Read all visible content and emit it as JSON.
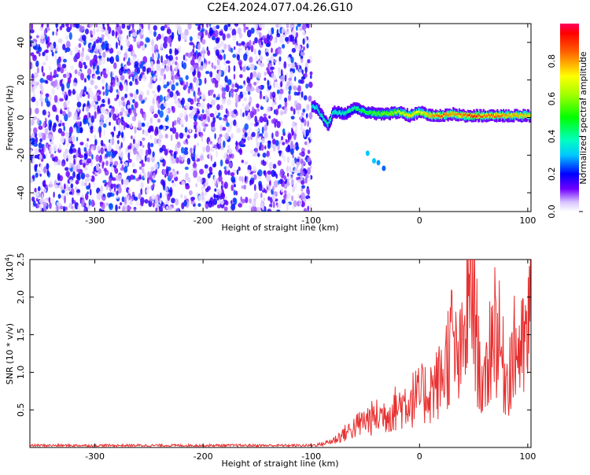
{
  "title": "C2E4.2024.077.04.26.G10",
  "chart_data": [
    {
      "type": "heatmap",
      "xlabel": "Height of straight line (km)",
      "ylabel": "Frequency (Hz)",
      "xlim": [
        -360,
        103
      ],
      "ylim": [
        -50,
        50
      ],
      "xticks": [
        -300,
        -200,
        -100,
        0,
        100
      ],
      "yticks": [
        -40,
        -20,
        0,
        20,
        40
      ],
      "colorbar": {
        "label": "Normalized spectral amplitude",
        "range": [
          0,
          1
        ],
        "ticks": [
          "0.0",
          "0.2",
          "0.4",
          "0.6",
          "0.8"
        ],
        "tick_values": [
          0,
          0.2,
          0.4,
          0.6,
          0.8
        ]
      },
      "noise_region": {
        "x_from": -360,
        "x_to": -100,
        "amplitude_range": [
          0.02,
          0.25
        ]
      },
      "signal_ridge": [
        {
          "x": -100,
          "freq": 6,
          "amp": 0.35
        },
        {
          "x": -95,
          "freq": 5,
          "amp": 0.4
        },
        {
          "x": -90,
          "freq": 0,
          "amp": 0.4
        },
        {
          "x": -85,
          "freq": -4,
          "amp": 0.45
        },
        {
          "x": -80,
          "freq": 3,
          "amp": 0.4
        },
        {
          "x": -70,
          "freq": 2,
          "amp": 0.4
        },
        {
          "x": -60,
          "freq": 5,
          "amp": 0.45
        },
        {
          "x": -50,
          "freq": 3,
          "amp": 0.5
        },
        {
          "x": -40,
          "freq": 2,
          "amp": 0.55
        },
        {
          "x": -30,
          "freq": 2,
          "amp": 0.6
        },
        {
          "x": -20,
          "freq": 3,
          "amp": 0.65
        },
        {
          "x": -10,
          "freq": 1,
          "amp": 0.75
        },
        {
          "x": 0,
          "freq": 3,
          "amp": 0.7
        },
        {
          "x": 10,
          "freq": 1,
          "amp": 0.8
        },
        {
          "x": 20,
          "freq": 1,
          "amp": 0.9
        },
        {
          "x": 30,
          "freq": 2,
          "amp": 0.8
        },
        {
          "x": 40,
          "freq": 1,
          "amp": 0.85
        },
        {
          "x": 50,
          "freq": 1,
          "amp": 0.95
        },
        {
          "x": 60,
          "freq": 1,
          "amp": 0.85
        },
        {
          "x": 70,
          "freq": 1,
          "amp": 0.9
        },
        {
          "x": 80,
          "freq": 1,
          "amp": 0.8
        },
        {
          "x": 90,
          "freq": 1,
          "amp": 0.8
        },
        {
          "x": 103,
          "freq": 1,
          "amp": 0.75
        }
      ],
      "side_blobs": [
        {
          "x": -48,
          "freq": -19,
          "amp": 0.3
        },
        {
          "x": -42,
          "freq": -23,
          "amp": 0.3
        },
        {
          "x": -38,
          "freq": -24,
          "amp": 0.28
        },
        {
          "x": -33,
          "freq": -27,
          "amp": 0.25
        }
      ]
    },
    {
      "type": "line",
      "xlabel": "Height of straight line (km)",
      "ylabel": "SNR (10 * v/v)",
      "y_multiplier": "(x10",
      "y_multiplier_exp": "4",
      "y_multiplier_close": ")",
      "xlim": [
        -360,
        103
      ],
      "ylim": [
        0,
        2.5
      ],
      "xticks": [
        -300,
        -200,
        -100,
        0,
        100
      ],
      "yticks": [
        "0.5",
        "1.0",
        "1.5",
        "2.0",
        "2.5"
      ],
      "ytick_values": [
        0.5,
        1.0,
        1.5,
        2.0,
        2.5
      ],
      "color": "#e83030",
      "series": [
        {
          "x": [
            -360,
            -300,
            -200,
            -100,
            -90,
            -80,
            -70,
            -60,
            -50,
            -40,
            -30,
            -20,
            -10,
            0,
            10,
            20,
            25,
            30,
            35,
            40,
            45,
            48,
            52,
            55,
            60,
            65,
            70,
            75,
            80,
            85,
            90,
            95,
            100,
            103
          ],
          "values": [
            0.03,
            0.03,
            0.03,
            0.03,
            0.05,
            0.1,
            0.2,
            0.3,
            0.4,
            0.45,
            0.5,
            0.6,
            0.7,
            0.75,
            0.85,
            1.0,
            1.3,
            1.6,
            1.2,
            1.4,
            2.1,
            2.5,
            1.8,
            1.2,
            0.8,
            1.5,
            1.9,
            1.4,
            1.0,
            1.3,
            1.5,
            1.4,
            1.6,
            2.2
          ]
        }
      ]
    }
  ]
}
